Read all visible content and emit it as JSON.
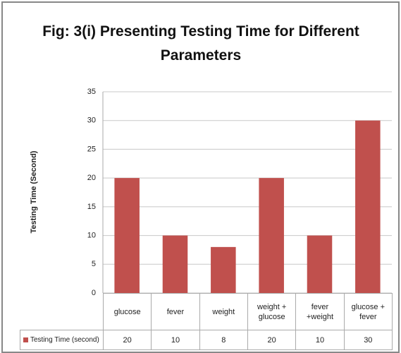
{
  "chart_data": {
    "type": "bar",
    "title": "Fig: 3(i)  Presenting Testing Time for Different Parameters",
    "y_label": "Testing Time (Second)",
    "categories": [
      "glucose",
      "fever",
      "weight",
      "weight + glucose",
      "fever +weight",
      "glucose + fever"
    ],
    "series": [
      {
        "name": "Testing Time (second)",
        "color": "#c0504d",
        "values": [
          20,
          10,
          8,
          20,
          10,
          30
        ]
      }
    ],
    "ylim": [
      0,
      35
    ],
    "yticks": [
      0,
      5,
      10,
      15,
      20,
      25,
      30,
      35
    ],
    "grid": true,
    "data_table": true
  }
}
